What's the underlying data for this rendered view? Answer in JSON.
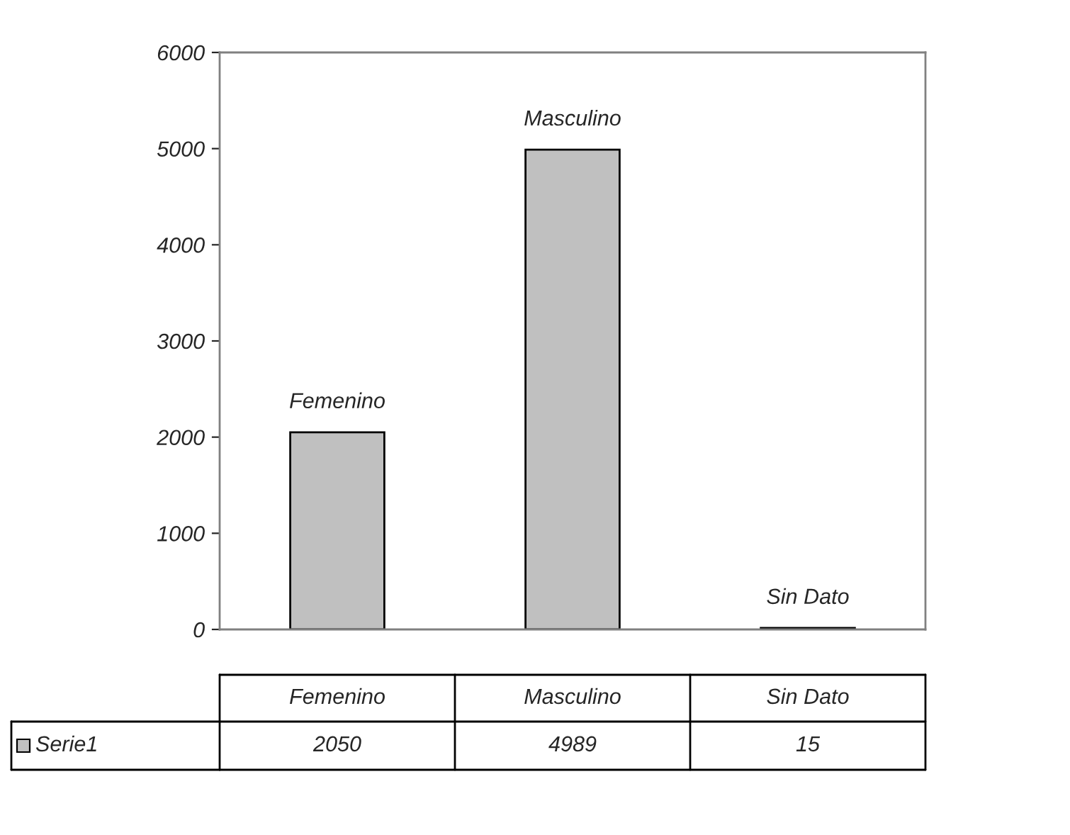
{
  "chart_data": {
    "type": "bar",
    "categories": [
      "Femenino",
      "Masculino",
      "Sin Dato"
    ],
    "series": [
      {
        "name": "Serie1",
        "color": "#c0c0c0",
        "values": [
          2050,
          4989,
          15
        ]
      }
    ],
    "ylim": [
      0,
      6000
    ],
    "yticks": [
      0,
      1000,
      2000,
      3000,
      4000,
      5000,
      6000
    ],
    "grid": false,
    "legend": "bottom",
    "data_labels": true,
    "annotations": [
      {
        "text": "Femenino",
        "x": "Femenino",
        "y": 2050
      },
      {
        "text": "Masculino",
        "x": "Masculino",
        "y": 4989
      },
      {
        "text": "Sin Dato",
        "x": "Sin Dato",
        "y": 15
      }
    ]
  }
}
